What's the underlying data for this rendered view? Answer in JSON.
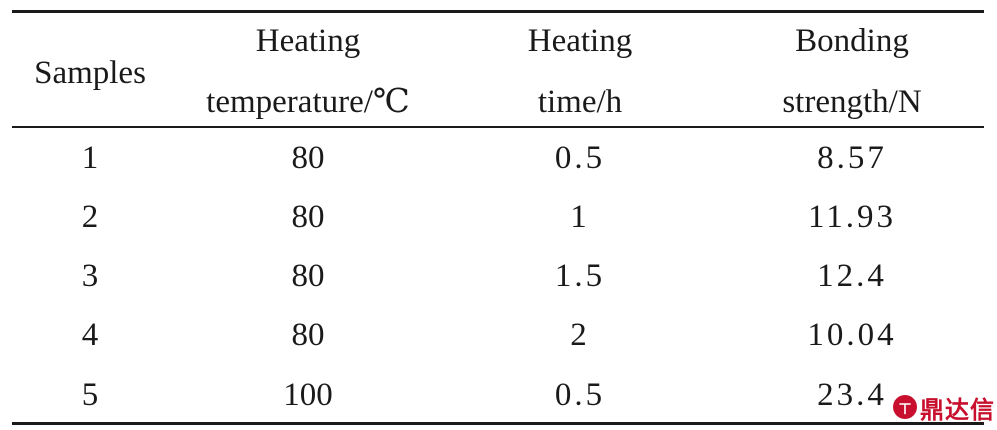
{
  "table": {
    "headers": {
      "samples": "Samples",
      "heating_temperature": [
        "Heating",
        "temperature/℃"
      ],
      "heating_time": [
        "Heating",
        "time/h"
      ],
      "bonding_strength": [
        "Bonding",
        "strength/N"
      ]
    },
    "rows": [
      {
        "sample": "1",
        "temperature": "80",
        "time": "0.5",
        "strength": "8.57"
      },
      {
        "sample": "2",
        "temperature": "80",
        "time": "1",
        "strength": "11.93"
      },
      {
        "sample": "3",
        "temperature": "80",
        "time": "1.5",
        "strength": "12.4"
      },
      {
        "sample": "4",
        "temperature": "80",
        "time": "2",
        "strength": "10.04"
      },
      {
        "sample": "5",
        "temperature": "100",
        "time": "0.5",
        "strength": "23.4"
      }
    ]
  },
  "watermark": {
    "logo_glyph": "ㄒ",
    "text": "鼎达信"
  }
}
